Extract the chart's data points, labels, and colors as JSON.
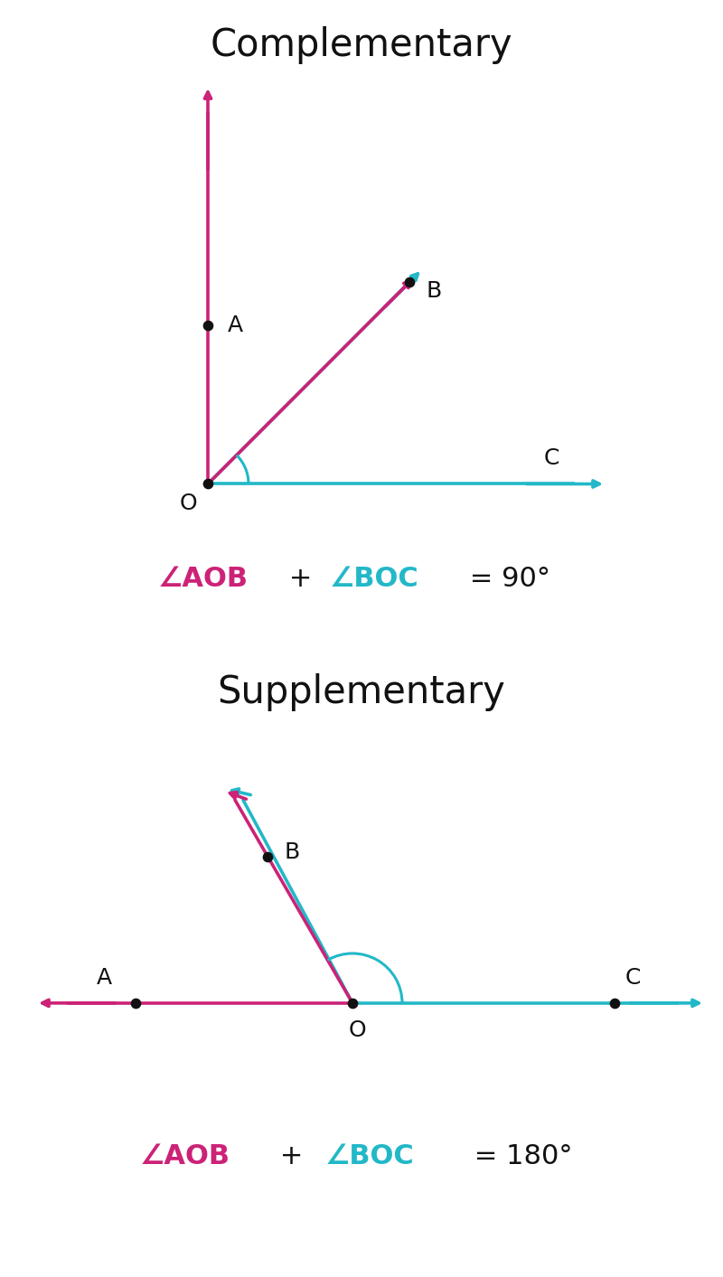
{
  "bg_color": "#ffffff",
  "magenta": "#cc2277",
  "cyan": "#22b8c8",
  "black": "#111111",
  "blue_bar_color": "#4a90d9",
  "comp_title": "Complementary",
  "supp_title": "Supplementary",
  "comp_eq": [
    "∠AOB",
    " + ",
    "∠BOC",
    " = 90°"
  ],
  "comp_eq_colors": [
    "magenta",
    "black",
    "cyan",
    "black"
  ],
  "supp_eq": [
    "∠AOB",
    " + ",
    "∠BOC",
    " = 180°"
  ],
  "supp_eq_colors": [
    "magenta",
    "black",
    "cyan",
    "black"
  ],
  "divider_color": "#cccccc",
  "title_fontsize": 30,
  "label_fontsize": 18,
  "eq_fontsize": 22,
  "lw": 2.6,
  "dot_size": 55
}
